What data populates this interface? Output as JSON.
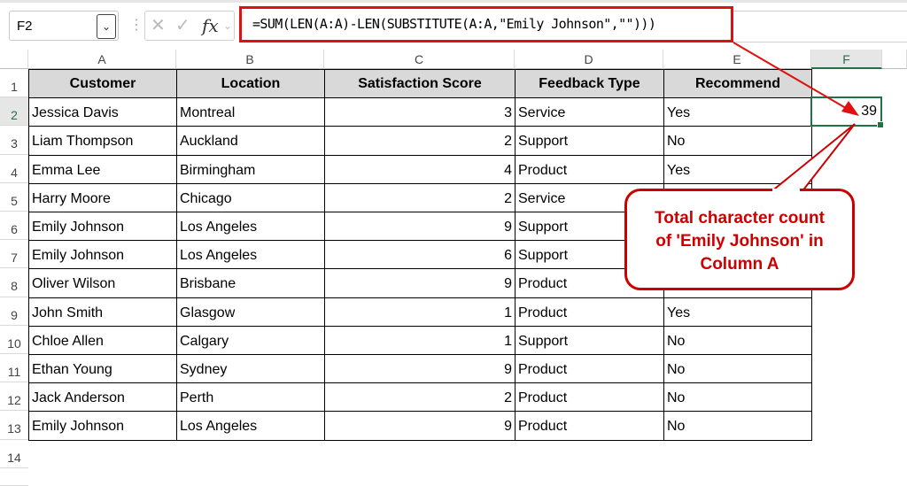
{
  "name_box": "F2",
  "formula": "=SUM(LEN(A:A)-LEN(SUBSTITUTE(A:A,\"Emily Johnson\",\"\")))",
  "columns": [
    "A",
    "B",
    "C",
    "D",
    "E",
    "F"
  ],
  "rows": [
    "1",
    "2",
    "3",
    "4",
    "5",
    "6",
    "7",
    "8",
    "9",
    "10",
    "11",
    "12",
    "13",
    "14"
  ],
  "headers": [
    "Customer",
    "Location",
    "Satisfaction Score",
    "Feedback Type",
    "Recommend"
  ],
  "data": [
    [
      "Jessica Davis",
      "Montreal",
      "3",
      "Service",
      "Yes"
    ],
    [
      "Liam Thompson",
      "Auckland",
      "2",
      "Support",
      "No"
    ],
    [
      "Emma Lee",
      "Birmingham",
      "4",
      "Product",
      "Yes"
    ],
    [
      "Harry Moore",
      "Chicago",
      "2",
      "Service",
      ""
    ],
    [
      "Emily Johnson",
      "Los Angeles",
      "9",
      "Support",
      ""
    ],
    [
      "Emily Johnson",
      "Los Angeles",
      "6",
      "Support",
      ""
    ],
    [
      "Oliver Wilson",
      "Brisbane",
      "9",
      "Product",
      ""
    ],
    [
      "John Smith",
      "Glasgow",
      "1",
      "Product",
      "Yes"
    ],
    [
      "Chloe Allen",
      "Calgary",
      "1",
      "Support",
      "No"
    ],
    [
      "Ethan Young",
      "Sydney",
      "9",
      "Product",
      "No"
    ],
    [
      "Jack Anderson",
      "Perth",
      "2",
      "Product",
      "No"
    ],
    [
      "Emily Johnson",
      "Los Angeles",
      "9",
      "Product",
      "No"
    ]
  ],
  "result": "39",
  "callout": {
    "line1": "Total character count",
    "line2": "of 'Emily Johnson' in",
    "line3": "Column A"
  }
}
